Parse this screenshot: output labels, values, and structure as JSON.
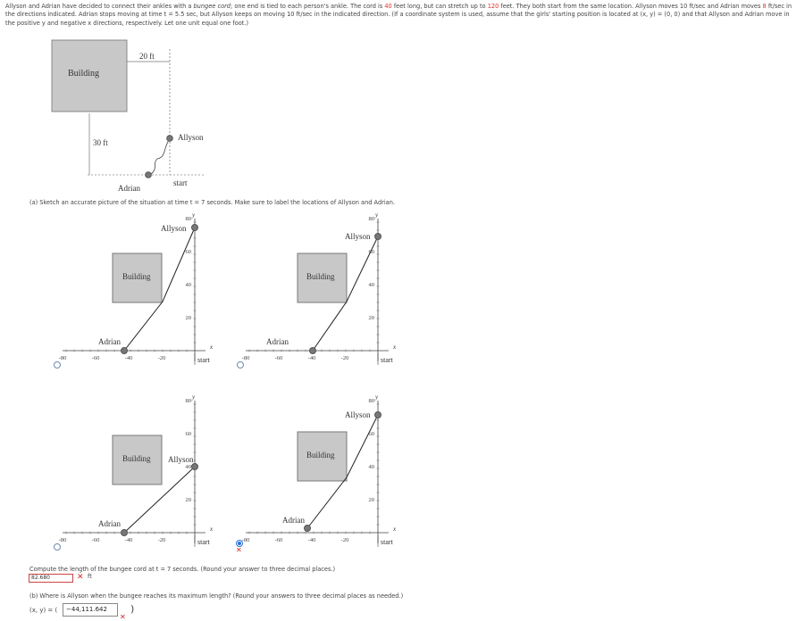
{
  "problem": {
    "p1": "Allyson and Adrian have decided to connect their ankles with a ",
    "bungee": "bungee cord",
    "p2": "; one end is tied to each person's ankle. The cord is ",
    "len": "40",
    "p3": " feet long, but can stretch up to ",
    "max": "120",
    "p4": " feet. They both start from the same location. Allyson moves 10 ft/sec and Adrian moves ",
    "speed": "8",
    "p5": " ft/sec in the directions indicated. Adrian stops moving at time t = 5.5 sec, but Allyson keeps on moving 10 ft/sec in the indicated direction. (If a coordinate system is used, assume that the girls' starting position is located at (x, y) = (0, 0) and that Allyson and Adrian move in the positive y and negative x directions, respectively. Let one unit equal one foot.)"
  },
  "diagram": {
    "building": "Building",
    "width_label": "20 ft",
    "height_label": "30 ft",
    "allyson": "Allyson",
    "adrian": "Adrian",
    "start": "start"
  },
  "part_a": {
    "prompt": "(a) Sketch an accurate picture of the situation at time t = 7 seconds. Make sure to label the locations of Allyson and Adrian.",
    "x_ticks": [
      "-80",
      "-60",
      "-40",
      "-20"
    ],
    "y_ticks": [
      "20",
      "40",
      "60",
      "80"
    ],
    "x_axis": "x",
    "y_axis": "y",
    "building": "Building",
    "allyson": "Allyson",
    "adrian": "Adrian",
    "start": "start",
    "selected_option": 4
  },
  "length_q": {
    "prompt": "Compute the length of the bungee cord at t = 7 seconds. (Round your answer to three decimal places.)",
    "answer": "82.680",
    "unit": "ft",
    "status": "incorrect"
  },
  "part_b": {
    "prompt": "(b) Where is Allyson when the bungee reaches its maximum length? (Round your answers to three decimal places as needed.)",
    "label": "(x, y) = (",
    "answer": "−44,111.642",
    "close": ")",
    "status": "incorrect"
  },
  "colors": {
    "accent_red": "#e0302a",
    "selected_blue": "#2a6fd6",
    "building_fill": "#c8c8c8"
  }
}
